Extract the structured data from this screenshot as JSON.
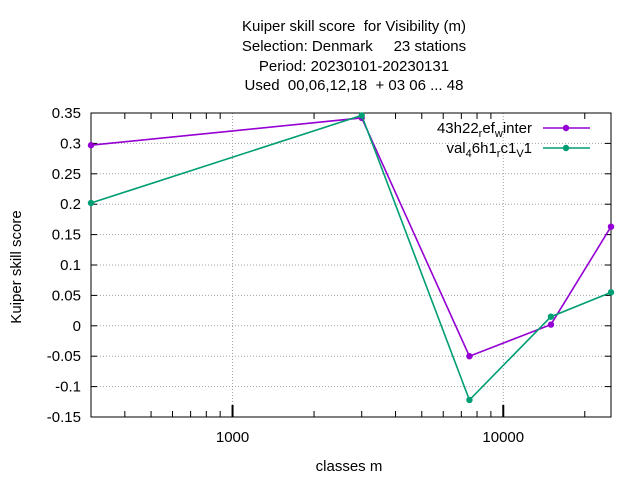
{
  "chart_data": {
    "type": "line",
    "title_lines": [
      "Kuiper skill score  for Visibility (m)",
      "Selection: Denmark     23 stations",
      "Period: 20230101-20230131",
      "Used  00,06,12,18  + 03 06 ... 48"
    ],
    "xlabel": "classes m",
    "ylabel": "Kuiper skill score",
    "xscale": "log",
    "xlim": [
      300,
      25000
    ],
    "ylim": [
      -0.15,
      0.35
    ],
    "xticks": [
      1000,
      10000
    ],
    "xtick_labels": [
      "1000",
      "10000"
    ],
    "yticks": [
      -0.15,
      -0.1,
      -0.05,
      0,
      0.05,
      0.1,
      0.15,
      0.2,
      0.25,
      0.3,
      0.35
    ],
    "ytick_labels": [
      "-0.15",
      "-0.1",
      "-0.05",
      "0",
      "0.05",
      "0.1",
      "0.15",
      "0.2",
      "0.25",
      "0.3",
      "0.35"
    ],
    "grid": true,
    "legend_position": "top-right",
    "x": [
      300,
      3000,
      7500,
      15000,
      25000
    ],
    "series": [
      {
        "name_parts": [
          [
            "43h22",
            ""
          ],
          [
            "r",
            "sub"
          ],
          [
            "ef",
            ""
          ],
          [
            "w",
            "sub"
          ],
          [
            "inter",
            ""
          ]
        ],
        "color": "#9400d3",
        "values": [
          0.297,
          0.342,
          -0.05,
          0.002,
          0.163
        ]
      },
      {
        "name_parts": [
          [
            "val",
            ""
          ],
          [
            "4",
            "sub"
          ],
          [
            "6h1",
            ""
          ],
          [
            "r",
            "sub"
          ],
          [
            "c1",
            ""
          ],
          [
            "V",
            "sub"
          ],
          [
            "1",
            ""
          ]
        ],
        "color": "#009e73",
        "values": [
          0.202,
          0.346,
          -0.122,
          0.015,
          0.055
        ]
      }
    ]
  }
}
